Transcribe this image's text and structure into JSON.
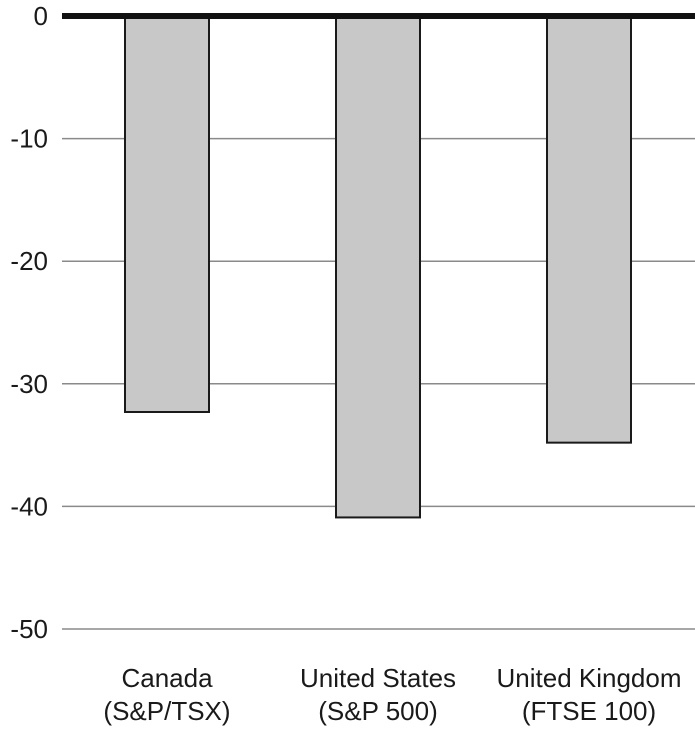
{
  "chart_data": {
    "type": "bar",
    "categories": [
      [
        "Canada",
        "(S&P/TSX)"
      ],
      [
        "United States",
        "(S&P 500)"
      ],
      [
        "United Kingdom",
        "(FTSE 100)"
      ]
    ],
    "values": [
      -32.3,
      -40.9,
      -34.8
    ],
    "yticks": [
      "0",
      "-10",
      "-20",
      "-30",
      "-40",
      "-50"
    ],
    "ylim": [
      -50,
      0
    ],
    "grid": true,
    "colors": {
      "bar_fill": "#c8c8c8",
      "bar_stroke": "#1a1a1a",
      "grid": "#8a8a8a",
      "zero_line": "#111111"
    }
  }
}
